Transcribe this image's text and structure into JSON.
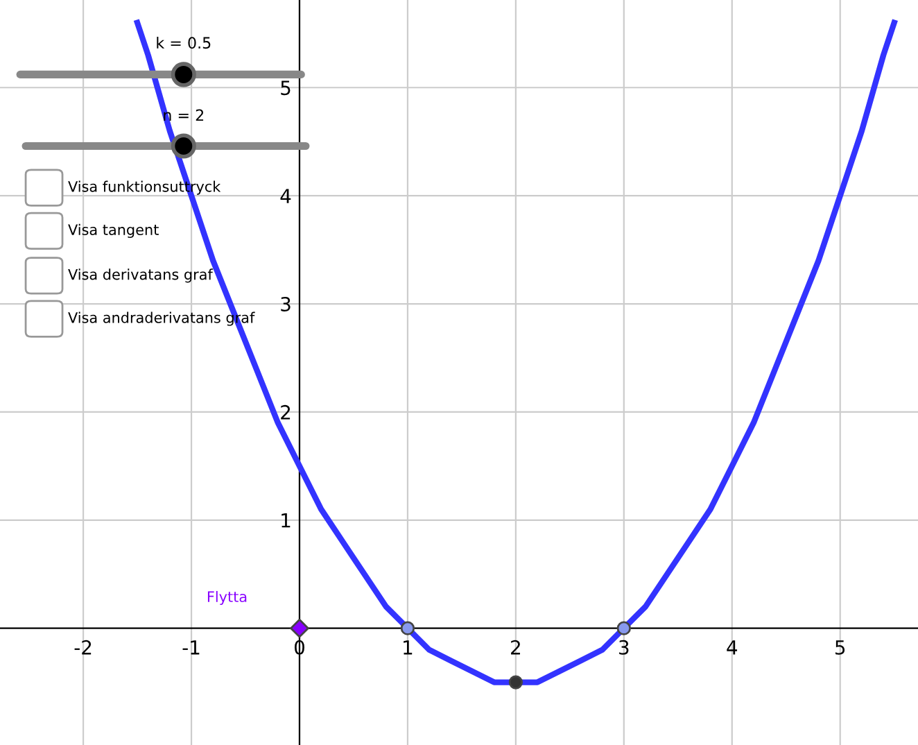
{
  "chart_data": {
    "type": "line",
    "xlim": [
      -2.77,
      5.72
    ],
    "ylim": [
      -1.08,
      5.81
    ],
    "xticks": [
      -2,
      -1,
      0,
      1,
      2,
      3,
      4,
      5
    ],
    "yticks": [
      1,
      2,
      3,
      4,
      5
    ],
    "grid": true,
    "series": [
      {
        "type": "line",
        "color": "#3333ff",
        "marker": "none",
        "x": [
          -1.5,
          -1.4,
          -1.2,
          -1,
          -0.8,
          -0.6,
          -0.4,
          -0.2,
          0,
          0.2,
          0.4,
          0.6,
          0.8,
          1,
          1.2,
          1.4,
          1.6,
          1.8,
          2,
          2.2,
          2.4,
          2.6,
          2.8,
          3,
          3.2,
          3.4,
          3.6,
          3.8,
          4,
          4.2,
          4.4,
          4.6,
          4.8,
          5,
          5.2,
          5.4,
          5.5
        ],
        "values": [
          5.6,
          5.3,
          4.6,
          4,
          3.4,
          2.9,
          2.4,
          1.9,
          1.5,
          1.1,
          0.8,
          0.5,
          0.2,
          0,
          -0.2,
          -0.3,
          -0.4,
          -0.5,
          -0.5,
          -0.5,
          -0.4,
          -0.3,
          -0.2,
          0,
          0.2,
          0.5,
          0.8,
          1.1,
          1.5,
          1.9,
          2.4,
          2.9,
          3.4,
          4,
          4.6,
          5.3,
          5.6
        ]
      },
      {
        "type": "scatter",
        "color": "#8899ee",
        "marker": "circle",
        "x": [
          1,
          3
        ],
        "values": [
          0,
          0
        ]
      },
      {
        "type": "scatter",
        "color": "#333333",
        "marker": "circle",
        "x": [
          2
        ],
        "values": [
          -0.5
        ]
      },
      {
        "type": "scatter",
        "color": "#8800ff",
        "marker": "diamond",
        "x": [
          0
        ],
        "values": [
          0
        ]
      }
    ],
    "annotations": [
      "k = 0.5",
      "n = 2",
      "Visa funktionsuttryck",
      "Visa tangent",
      "Visa derivatans graf",
      "Visa andraderivatans graf",
      "Flytta"
    ]
  }
}
